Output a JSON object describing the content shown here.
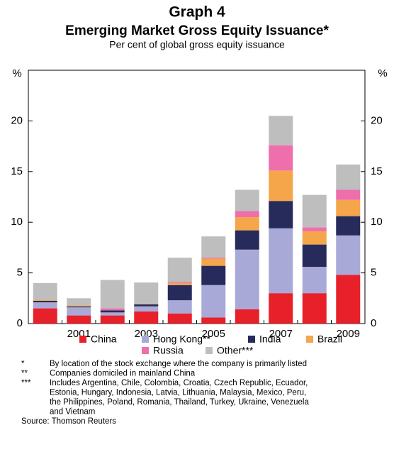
{
  "chart_data": {
    "type": "stacked_bar",
    "title": "Graph 4",
    "subtitle": "Emerging Market Gross Equity Issuance*",
    "description": "Per cent of global gross equity issuance",
    "y_label": "%",
    "categories": [
      null,
      "2001",
      null,
      "2003",
      null,
      "2005",
      null,
      "2007",
      null,
      "2009"
    ],
    "series": [
      {
        "name": "China",
        "color": "#e8202a",
        "values": [
          1.5,
          0.8,
          0.8,
          1.2,
          1.0,
          0.6,
          1.4,
          3.0,
          3.0,
          4.8
        ]
      },
      {
        "name": "Hong Kong**",
        "color": "#a9a9d8",
        "values": [
          0.6,
          0.8,
          0.3,
          0.5,
          1.3,
          3.2,
          5.9,
          6.4,
          2.6,
          3.9
        ]
      },
      {
        "name": "India",
        "color": "#262b5c",
        "values": [
          0.15,
          0.1,
          0.2,
          0.2,
          1.5,
          1.9,
          1.9,
          2.7,
          2.2,
          1.9
        ]
      },
      {
        "name": "Brazil",
        "color": "#f5a54a",
        "values": [
          0.1,
          0.1,
          0,
          0.05,
          0.2,
          0.7,
          1.3,
          3.0,
          1.3,
          1.6
        ]
      },
      {
        "name": "Russia",
        "color": "#ee6fab",
        "values": [
          0,
          0,
          0.2,
          0,
          0.1,
          0.1,
          0.6,
          2.5,
          0.4,
          1.0
        ]
      },
      {
        "name": "Other***",
        "color": "#bebebf",
        "values": [
          1.65,
          0.7,
          2.8,
          2.1,
          2.4,
          2.1,
          2.1,
          2.9,
          3.2,
          2.5
        ]
      }
    ],
    "ylim": [
      0,
      25
    ],
    "yticks": [
      0,
      5,
      10,
      15,
      20
    ],
    "notes": [
      {
        "marker": "*",
        "text": "By location of the stock exchange where the company is primarily listed"
      },
      {
        "marker": "**",
        "text": "Companies domiciled in mainland China"
      },
      {
        "marker": "***",
        "text": [
          "Includes Argentina, Chile, Colombia, Croatia, Czech Republic, Ecuador,",
          "Estonia, Hungary, Indonesia, Latvia, Lithuania, Malaysia, Mexico, Peru,",
          "the Philippines, Poland, Romania, Thailand, Turkey, Ukraine, Venezuela",
          "and Vietnam"
        ]
      }
    ],
    "source": "Source: Thomson Reuters"
  }
}
